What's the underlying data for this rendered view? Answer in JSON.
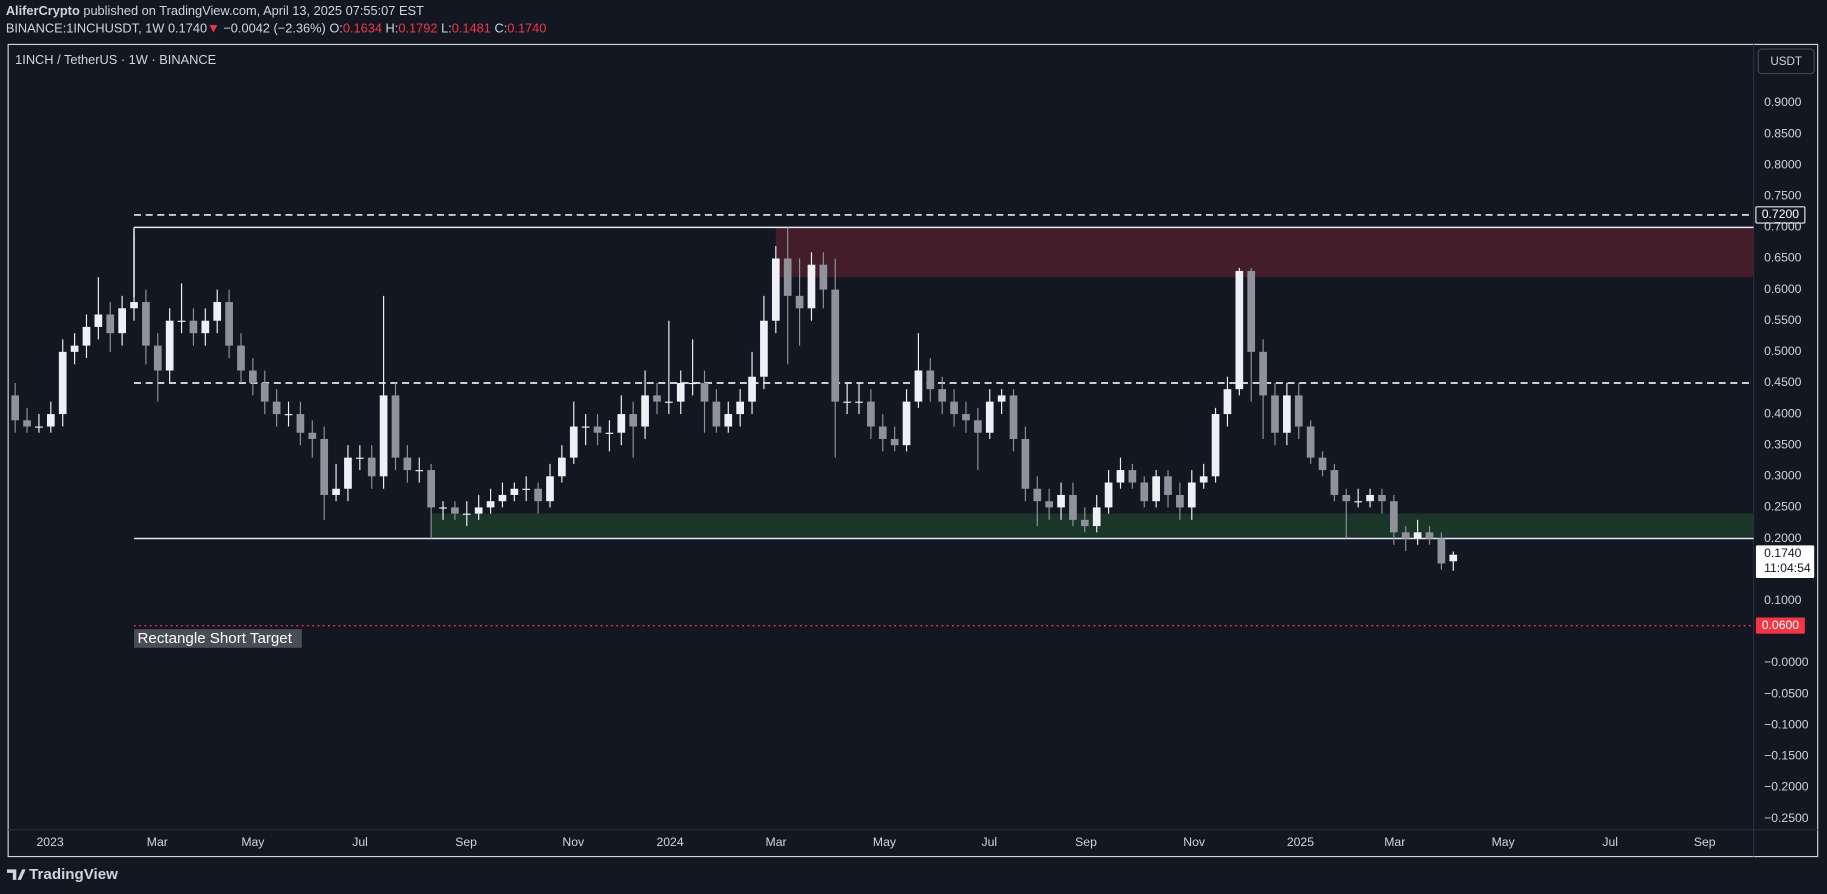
{
  "header": {
    "publisher": "AliferCrypto",
    "published": "published on TradingView.com, April 13, 2025 07:55:07 EST",
    "symbol": "BINANCE:1INCHUSDT, 1W",
    "last": "0.1740",
    "arrow": "▼",
    "change": "−0.0042 (−2.36%)",
    "ohlc": [
      {
        "label": "O:",
        "value": "0.1634"
      },
      {
        "label": "H:",
        "value": "0.1792"
      },
      {
        "label": "L:",
        "value": "0.1481"
      },
      {
        "label": "C:",
        "value": "0.1740"
      }
    ],
    "brand": "TradingView"
  },
  "chart_data": {
    "type": "candlestick",
    "title": "1INCH / TetherUS · 1W · BINANCE",
    "currency": "USDT",
    "up_color": "#eef0f5",
    "down_color": "#8f929b",
    "grid": false,
    "open": [
      0.43,
      0.39,
      0.38,
      0.38,
      0.4,
      0.5,
      0.51,
      0.54,
      0.56,
      0.53,
      0.57,
      0.58,
      0.51,
      0.47,
      0.55,
      0.55,
      0.53,
      0.55,
      0.58,
      0.51,
      0.47,
      0.45,
      0.42,
      0.4,
      0.4,
      0.37,
      0.36,
      0.27,
      0.28,
      0.33,
      0.33,
      0.3,
      0.43,
      0.33,
      0.31,
      0.31,
      0.25,
      0.25,
      0.24,
      0.24,
      0.25,
      0.26,
      0.27,
      0.28,
      0.28,
      0.26,
      0.3,
      0.33,
      0.38,
      0.38,
      0.37,
      0.37,
      0.4,
      0.38,
      0.43,
      0.42,
      0.42,
      0.45,
      0.45,
      0.42,
      0.38,
      0.4,
      0.42,
      0.46,
      0.55,
      0.65,
      0.59,
      0.57,
      0.64,
      0.6,
      0.42,
      0.42,
      0.42,
      0.38,
      0.36,
      0.35,
      0.42,
      0.47,
      0.44,
      0.42,
      0.4,
      0.39,
      0.37,
      0.42,
      0.43,
      0.36,
      0.28,
      0.26,
      0.25,
      0.27,
      0.23,
      0.22,
      0.25,
      0.29,
      0.31,
      0.29,
      0.26,
      0.3,
      0.27,
      0.25,
      0.29,
      0.3,
      0.4,
      0.44,
      0.63,
      0.5,
      0.43,
      0.37,
      0.43,
      0.38,
      0.33,
      0.31,
      0.27,
      0.26,
      0.26,
      0.27,
      0.26,
      0.21,
      0.2,
      0.21,
      0.2,
      0.1634
    ],
    "high": [
      0.45,
      0.41,
      0.4,
      0.42,
      0.52,
      0.53,
      0.56,
      0.62,
      0.58,
      0.59,
      0.69,
      0.6,
      0.53,
      0.57,
      0.61,
      0.57,
      0.57,
      0.6,
      0.6,
      0.53,
      0.49,
      0.47,
      0.44,
      0.42,
      0.42,
      0.39,
      0.38,
      0.32,
      0.35,
      0.35,
      0.35,
      0.59,
      0.45,
      0.35,
      0.33,
      0.32,
      0.26,
      0.26,
      0.26,
      0.27,
      0.28,
      0.29,
      0.29,
      0.3,
      0.29,
      0.32,
      0.35,
      0.42,
      0.4,
      0.4,
      0.39,
      0.43,
      0.42,
      0.47,
      0.45,
      0.55,
      0.47,
      0.52,
      0.47,
      0.44,
      0.42,
      0.44,
      0.5,
      0.59,
      0.67,
      0.7,
      0.65,
      0.66,
      0.66,
      0.65,
      0.45,
      0.45,
      0.44,
      0.4,
      0.38,
      0.44,
      0.53,
      0.49,
      0.46,
      0.44,
      0.42,
      0.41,
      0.44,
      0.44,
      0.44,
      0.38,
      0.3,
      0.28,
      0.29,
      0.29,
      0.25,
      0.27,
      0.31,
      0.33,
      0.32,
      0.3,
      0.31,
      0.31,
      0.29,
      0.31,
      0.32,
      0.41,
      0.46,
      0.635,
      0.635,
      0.52,
      0.45,
      0.45,
      0.45,
      0.39,
      0.34,
      0.32,
      0.28,
      0.28,
      0.28,
      0.28,
      0.27,
      0.22,
      0.23,
      0.22,
      0.21,
      0.1792
    ],
    "low": [
      0.37,
      0.37,
      0.37,
      0.37,
      0.38,
      0.48,
      0.49,
      0.52,
      0.5,
      0.51,
      0.55,
      0.48,
      0.42,
      0.45,
      0.53,
      0.51,
      0.51,
      0.53,
      0.49,
      0.45,
      0.43,
      0.4,
      0.38,
      0.38,
      0.35,
      0.33,
      0.23,
      0.26,
      0.26,
      0.31,
      0.28,
      0.28,
      0.31,
      0.29,
      0.29,
      0.2,
      0.23,
      0.23,
      0.22,
      0.23,
      0.24,
      0.25,
      0.26,
      0.26,
      0.24,
      0.25,
      0.29,
      0.32,
      0.35,
      0.35,
      0.34,
      0.35,
      0.33,
      0.36,
      0.4,
      0.4,
      0.4,
      0.43,
      0.37,
      0.37,
      0.37,
      0.38,
      0.4,
      0.44,
      0.53,
      0.48,
      0.51,
      0.55,
      0.57,
      0.33,
      0.4,
      0.4,
      0.36,
      0.34,
      0.34,
      0.34,
      0.41,
      0.42,
      0.4,
      0.38,
      0.37,
      0.31,
      0.36,
      0.4,
      0.34,
      0.26,
      0.22,
      0.23,
      0.23,
      0.22,
      0.21,
      0.21,
      0.24,
      0.28,
      0.28,
      0.25,
      0.25,
      0.25,
      0.23,
      0.23,
      0.28,
      0.29,
      0.38,
      0.43,
      0.42,
      0.36,
      0.35,
      0.35,
      0.36,
      0.32,
      0.3,
      0.26,
      0.2,
      0.25,
      0.25,
      0.24,
      0.19,
      0.18,
      0.19,
      0.19,
      0.15,
      0.1481
    ],
    "close": [
      0.39,
      0.38,
      0.38,
      0.4,
      0.5,
      0.51,
      0.54,
      0.56,
      0.53,
      0.57,
      0.58,
      0.51,
      0.47,
      0.55,
      0.55,
      0.53,
      0.55,
      0.58,
      0.51,
      0.47,
      0.45,
      0.42,
      0.4,
      0.4,
      0.37,
      0.36,
      0.27,
      0.28,
      0.33,
      0.33,
      0.3,
      0.43,
      0.33,
      0.31,
      0.31,
      0.25,
      0.25,
      0.24,
      0.24,
      0.25,
      0.26,
      0.27,
      0.28,
      0.28,
      0.26,
      0.3,
      0.33,
      0.38,
      0.38,
      0.37,
      0.37,
      0.4,
      0.38,
      0.43,
      0.42,
      0.42,
      0.45,
      0.45,
      0.42,
      0.38,
      0.4,
      0.42,
      0.46,
      0.55,
      0.65,
      0.59,
      0.57,
      0.64,
      0.6,
      0.42,
      0.42,
      0.42,
      0.38,
      0.36,
      0.35,
      0.42,
      0.47,
      0.44,
      0.42,
      0.4,
      0.39,
      0.37,
      0.42,
      0.43,
      0.36,
      0.28,
      0.26,
      0.25,
      0.27,
      0.23,
      0.22,
      0.25,
      0.29,
      0.31,
      0.29,
      0.26,
      0.3,
      0.27,
      0.25,
      0.29,
      0.3,
      0.4,
      0.44,
      0.63,
      0.5,
      0.43,
      0.37,
      0.43,
      0.38,
      0.33,
      0.31,
      0.27,
      0.26,
      0.26,
      0.27,
      0.26,
      0.21,
      0.2,
      0.21,
      0.2,
      0.16,
      0.174
    ],
    "xlim": [
      -0.59,
      146.27
    ],
    "xticks": [
      {
        "value": 2.94,
        "label": "2023"
      },
      {
        "value": 11.96,
        "label": "Mar"
      },
      {
        "value": 20,
        "label": "May"
      },
      {
        "value": 29.02,
        "label": "Jul"
      },
      {
        "value": 37.94,
        "label": "Sep"
      },
      {
        "value": 46.96,
        "label": "Nov"
      },
      {
        "value": 55.1,
        "label": "2024"
      },
      {
        "value": 64.02,
        "label": "Mar"
      },
      {
        "value": 73.14,
        "label": "May"
      },
      {
        "value": 81.96,
        "label": "Jul"
      },
      {
        "value": 90.1,
        "label": "Sep"
      },
      {
        "value": 99.2,
        "label": "Nov"
      },
      {
        "value": 108.14,
        "label": "2025"
      },
      {
        "value": 116.08,
        "label": "Mar"
      },
      {
        "value": 125.2,
        "label": "May"
      },
      {
        "value": 134.2,
        "label": "Jul"
      },
      {
        "value": 142.16,
        "label": "Sep"
      }
    ],
    "ylim": [
      -0.268,
      0.994
    ],
    "yticks": [
      {
        "value": 0.9,
        "label": "0.9000"
      },
      {
        "value": 0.85,
        "label": "0.8500"
      },
      {
        "value": 0.8,
        "label": "0.8000"
      },
      {
        "value": 0.75,
        "label": "0.7500"
      },
      {
        "value": 0.7,
        "label": "0.7000"
      },
      {
        "value": 0.65,
        "label": "0.6500"
      },
      {
        "value": 0.6,
        "label": "0.6000"
      },
      {
        "value": 0.55,
        "label": "0.5500"
      },
      {
        "value": 0.5,
        "label": "0.5000"
      },
      {
        "value": 0.45,
        "label": "0.4500"
      },
      {
        "value": 0.4,
        "label": "0.4000"
      },
      {
        "value": 0.35,
        "label": "0.3500"
      },
      {
        "value": 0.3,
        "label": "0.3000"
      },
      {
        "value": 0.25,
        "label": "0.2500"
      },
      {
        "value": 0.2,
        "label": "0.2000"
      },
      {
        "value": 0.1,
        "label": "0.1000"
      },
      {
        "value": 0,
        "label": "−0.0000"
      },
      {
        "value": -0.05,
        "label": "−0.0500"
      },
      {
        "value": -0.1,
        "label": "−0.1000"
      },
      {
        "value": -0.15,
        "label": "−0.1500"
      },
      {
        "value": -0.2,
        "label": "−0.2000"
      },
      {
        "value": -0.25,
        "label": "−0.2500"
      }
    ],
    "zones": [
      {
        "top": 0.7,
        "bottom": 0.62,
        "start": 64,
        "color": "#4a1e2b"
      },
      {
        "top": 0.24,
        "bottom": 0.2,
        "start": 35,
        "color": "#1d3a2a"
      }
    ],
    "rectangle": {
      "top": 0.7,
      "bottom": 0.2,
      "start": 10
    },
    "dashed_levels": [
      {
        "value": 0.72,
        "start": 10,
        "label": "0.7200"
      },
      {
        "value": 0.45,
        "start": 10
      }
    ],
    "target": {
      "value": 0.06,
      "start": 10,
      "label": "Rectangle Short Target",
      "price_label": "0.0600",
      "color": "#f23645"
    },
    "last_price": {
      "value": 0.174,
      "label": "0.1740",
      "countdown": "11:04:54"
    }
  }
}
